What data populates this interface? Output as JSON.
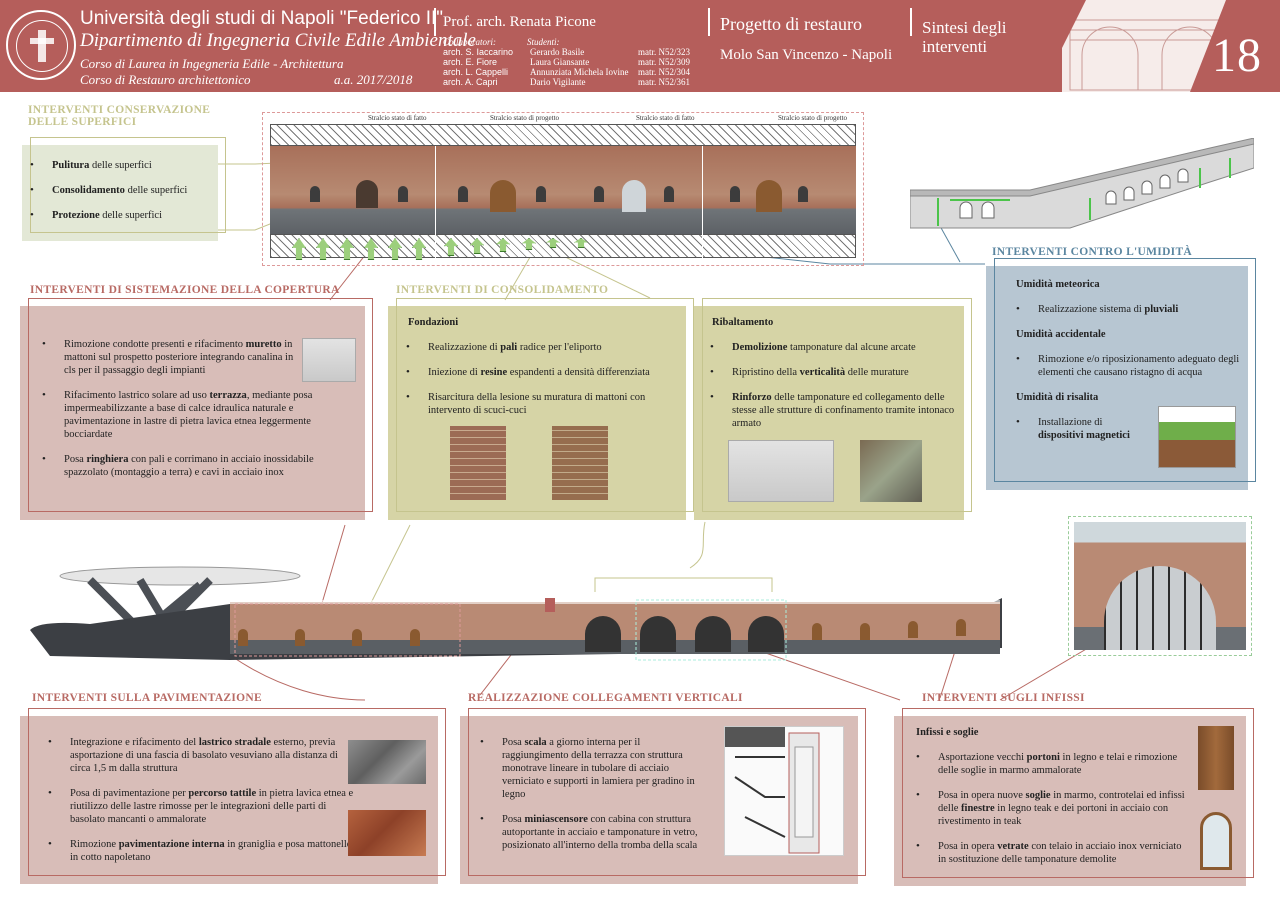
{
  "header": {
    "university": "Università degli studi di Napoli \"Federico II\"",
    "department": "Dipartimento di Ingegneria Civile Edile Ambientale",
    "course1": "Corso di Laurea in Ingegneria Edile - Architettura",
    "course2": "Corso di Restauro architettonico",
    "year": "a.a.  2017/2018",
    "professor": "Prof. arch. Renata Picone",
    "collab_title": "Collaboratori:",
    "collaborators": [
      "arch. S. Iaccarino",
      "arch. E. Fiore",
      "arch. L. Cappelli",
      "arch. A. Capri"
    ],
    "students_title": "Studenti:",
    "students": [
      {
        "name": "Gerardo Basile",
        "matr": "matr.  N52/323"
      },
      {
        "name": "Laura Giansante",
        "matr": "matr.  N52/309"
      },
      {
        "name": "Annunziata Michela Iovine",
        "matr": "matr.  N52/304"
      },
      {
        "name": "Dario Vigilante",
        "matr": "matr.  N52/361"
      }
    ],
    "project": "Progetto di restauro",
    "site": "Molo San Vincenzo - Napoli",
    "sheet_title_1": "Sintesi degli",
    "sheet_title_2": "interventi",
    "sheet_number": "18"
  },
  "strip": {
    "captions": [
      "Stralcio stato di fatto",
      "Stralcio stato di progetto",
      "Stralcio stato di fatto",
      "Stralcio stato di progetto"
    ]
  },
  "superfici": {
    "title1": "INTERVENTI CONSERVAZIONE",
    "title2": "DELLE SUPERFICI",
    "items": [
      {
        "b": "Pulitura",
        "t": " delle superfici"
      },
      {
        "b": "Consolidamento",
        "t": " delle superfici"
      },
      {
        "b": "Protezione",
        "t": " delle superfici"
      }
    ]
  },
  "umidita": {
    "title": "INTERVENTI CONTRO L'UMIDITÀ",
    "h1": "Umidità meteorica",
    "i1a": "Realizzazione sistema di ",
    "i1b": "pluviali",
    "h2": "Umidità accidentale",
    "i2": "Rimozione e/o riposizionamento adeguato degli elementi che causano ristagno di acqua",
    "h3": "Umidità di risalita",
    "i3a": "Installazione di",
    "i3b": "dispositivi magnetici"
  },
  "copertura": {
    "title": "INTERVENTI DI SISTEMAZIONE DELLA COPERTURA",
    "i1a": "Rimozione condotte presenti e rifacimento ",
    "i1b": "muretto",
    "i1c": " in mattoni sul prospetto posteriore integrando canalina in cls per il passaggio degli impianti",
    "i2a": "Rifacimento lastrico solare ad uso ",
    "i2b": "terrazza",
    "i2c": ", mediante posa impermeabilizzante a base di calce idraulica naturale e pavimentazione in lastre di pietra lavica etnea leggermente bocciardate",
    "i3a": "Posa ",
    "i3b": "ringhiera",
    "i3c": " con pali e corrimano in acciaio inossidabile spazzolato (montaggio a terra) e cavi in acciaio inox"
  },
  "consolidamento": {
    "title": "INTERVENTI DI CONSOLIDAMENTO",
    "fond": "Fondazioni",
    "f1a": "Realizzazione di ",
    "f1b": "pali",
    "f1c": " radice per l'eliporto",
    "f2a": "Iniezione di ",
    "f2b": "resine",
    "f2c": " espandenti a densità differenziata",
    "f3": "Risarcitura della lesione su muratura di mattoni con intervento di scuci-cuci",
    "rib": "Ribaltamento",
    "r1a": "Demolizione",
    "r1b": " tamponature dal alcune arcate",
    "r2a": "Ripristino della ",
    "r2b": "verticalità",
    "r2c": " delle murature",
    "r3a": "Rinforzo",
    "r3b": " delle tamponature ed collegamento delle stesse alle strutture di confinamento tramite intonaco armato"
  },
  "pavimentazione": {
    "title": "INTERVENTI SULLA PAVIMENTAZIONE",
    "i1a": "Integrazione e rifacimento del ",
    "i1b": "lastrico stradale",
    "i1c": " esterno, previa asportazione di una fascia di basolato vesuviano alla distanza di circa 1,5 m dalla struttura",
    "i2a": "Posa di pavimentazione per ",
    "i2b": "percorso tattile",
    "i2c": " in pietra lavica etnea e riutilizzo delle lastre rimosse per le integrazioni delle parti di basolato mancanti o ammalorate",
    "i3a": "Rimozione ",
    "i3b": "pavimentazione interna",
    "i3c": " in graniglia e posa mattonelle in cotto napoletano"
  },
  "collegamenti": {
    "title": "REALIZZAZIONE COLLEGAMENTI VERTICALI",
    "i1a": "Posa ",
    "i1b": "scala",
    "i1c": " a giorno interna per il raggiungimento della terrazza con struttura monotrave lineare in tubolare di acciaio verniciato e supporti in lamiera per gradino in legno",
    "i2a": "Posa ",
    "i2b": "miniascensore",
    "i2c": " con cabina con struttura autoportante in acciaio e tamponature in vetro, posizionato all'interno della tromba della scala"
  },
  "infissi": {
    "title": "INTERVENTI SUGLI INFISSI",
    "sub": "Infissi e soglie",
    "i1a": "Asportazione vecchi ",
    "i1b": "portoni",
    "i1c": " in legno e telai e rimozione delle soglie in marmo ammalorate",
    "i2a": "Posa in opera nuove ",
    "i2b": "soglie",
    "i2c": " in marmo, controtelai ed infissi  delle ",
    "i2d": "finestre",
    "i2e": " in legno teak e dei portoni in acciaio con rivestimento in teak",
    "i3a": "Posa in opera ",
    "i3b": "vetrate",
    "i3c": " con telaio  in acciaio inox verniciato in sostituzione delle tamponature demolite"
  },
  "colors": {
    "header": "#b55e5b",
    "olive": "#c5c48e",
    "rose": "#b86a64",
    "blue": "#5b86a0",
    "rose_fill": "#d8bdb8",
    "olive_fill": "#d6d4a6",
    "blue_fill": "#b7c6d2",
    "green_fill": "#e3e8d6"
  }
}
